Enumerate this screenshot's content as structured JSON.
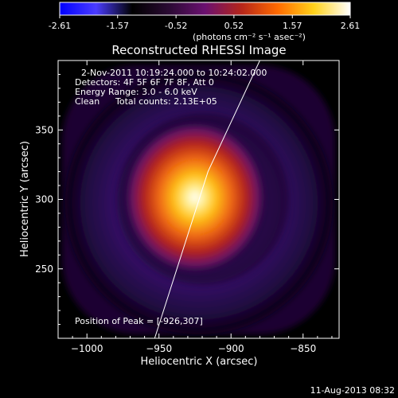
{
  "colorbar": {
    "ticks": [
      "-2.61",
      "-1.57",
      "-0.52",
      "0.52",
      "1.57",
      "2.61"
    ],
    "units": "(photons cm⁻² s⁻¹ asec⁻²)",
    "range": [
      -2.61,
      2.61
    ],
    "colors": [
      "#0000ff",
      "#4b3cff",
      "#000000",
      "#2a0a33",
      "#6a1070",
      "#b5251a",
      "#ff6a00",
      "#ffd21a",
      "#ffffff"
    ]
  },
  "chart_data": {
    "type": "heatmap",
    "title": "Reconstructed RHESSI Image",
    "xlabel": "Heliocentric X (arcsec)",
    "ylabel": "Heliocentric Y (arcsec)",
    "xlim": [
      -1020,
      -825
    ],
    "ylim": [
      200,
      400
    ],
    "x_ticks": [
      -1000,
      -950,
      -900,
      -850
    ],
    "y_ticks": [
      250,
      300,
      350
    ],
    "x_tick_labels": [
      "−1000",
      "−950",
      "−900",
      "−850"
    ],
    "y_tick_labels": [
      "250",
      "300",
      "350"
    ],
    "peak": {
      "x": -926,
      "y": 307
    },
    "limb_line": [
      [
        -953,
        200
      ],
      [
        -916,
        320
      ],
      [
        -880,
        400
      ]
    ],
    "annotations": {
      "time_range": "2-Nov-2011 10:19:24.000 to 10:24:02.000",
      "detectors": "Detectors: 4F 5F 6F 7F 8F, Att 0",
      "energy": "Energy Range: 3.0 - 6.0 keV",
      "method": "Clean",
      "counts": "Total counts: 2.13E+05",
      "peak_label": "Position of Peak = [-926,307]"
    },
    "grid": false
  },
  "footer": {
    "date": "11-Aug-2013 08:32"
  }
}
